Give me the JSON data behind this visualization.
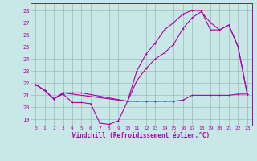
{
  "background_color": "#c8e8e8",
  "grid_color": "#a0b8b8",
  "line_color": "#aa00aa",
  "xlabel": "Windchill (Refroidissement éolien,°C)",
  "ylabel_ticks": [
    19,
    20,
    21,
    22,
    23,
    24,
    25,
    26,
    27,
    28
  ],
  "xtick_labels": [
    "0",
    "1",
    "2",
    "3",
    "4",
    "5",
    "6",
    "7",
    "8",
    "9",
    "10",
    "11",
    "12",
    "13",
    "14",
    "15",
    "16",
    "17",
    "18",
    "19",
    "20",
    "21",
    "22",
    "23"
  ],
  "xlim": [
    -0.5,
    23.5
  ],
  "ylim": [
    18.5,
    28.6
  ],
  "series1_x": [
    0,
    1,
    2,
    3,
    4,
    5,
    6,
    7,
    8,
    9,
    10,
    11,
    12,
    13,
    14,
    15,
    16,
    17,
    18,
    19,
    20,
    21,
    22,
    23
  ],
  "series1_y": [
    21.9,
    21.4,
    20.7,
    21.1,
    20.4,
    20.4,
    20.3,
    18.7,
    18.6,
    18.9,
    20.5,
    20.5,
    20.5,
    20.5,
    20.5,
    20.5,
    20.6,
    21.0,
    21.0,
    21.0,
    21.0,
    21.0,
    21.1,
    21.1
  ],
  "series2_x": [
    0,
    1,
    2,
    3,
    4,
    5,
    10,
    11,
    12,
    13,
    14,
    15,
    16,
    17,
    18,
    19,
    20,
    21,
    22,
    23
  ],
  "series2_y": [
    21.9,
    21.4,
    20.7,
    21.2,
    21.2,
    21.2,
    20.5,
    22.2,
    23.2,
    24.0,
    24.5,
    25.2,
    26.5,
    27.4,
    27.9,
    27.0,
    26.4,
    26.8,
    25.0,
    21.1
  ],
  "series3_x": [
    0,
    1,
    2,
    3,
    10,
    11,
    12,
    13,
    14,
    15,
    16,
    17,
    18,
    19,
    20,
    21,
    22,
    23
  ],
  "series3_y": [
    21.9,
    21.4,
    20.7,
    21.2,
    20.5,
    23.0,
    24.4,
    25.3,
    26.4,
    27.0,
    27.7,
    28.0,
    28.0,
    26.4,
    26.4,
    26.8,
    25.0,
    21.1
  ]
}
